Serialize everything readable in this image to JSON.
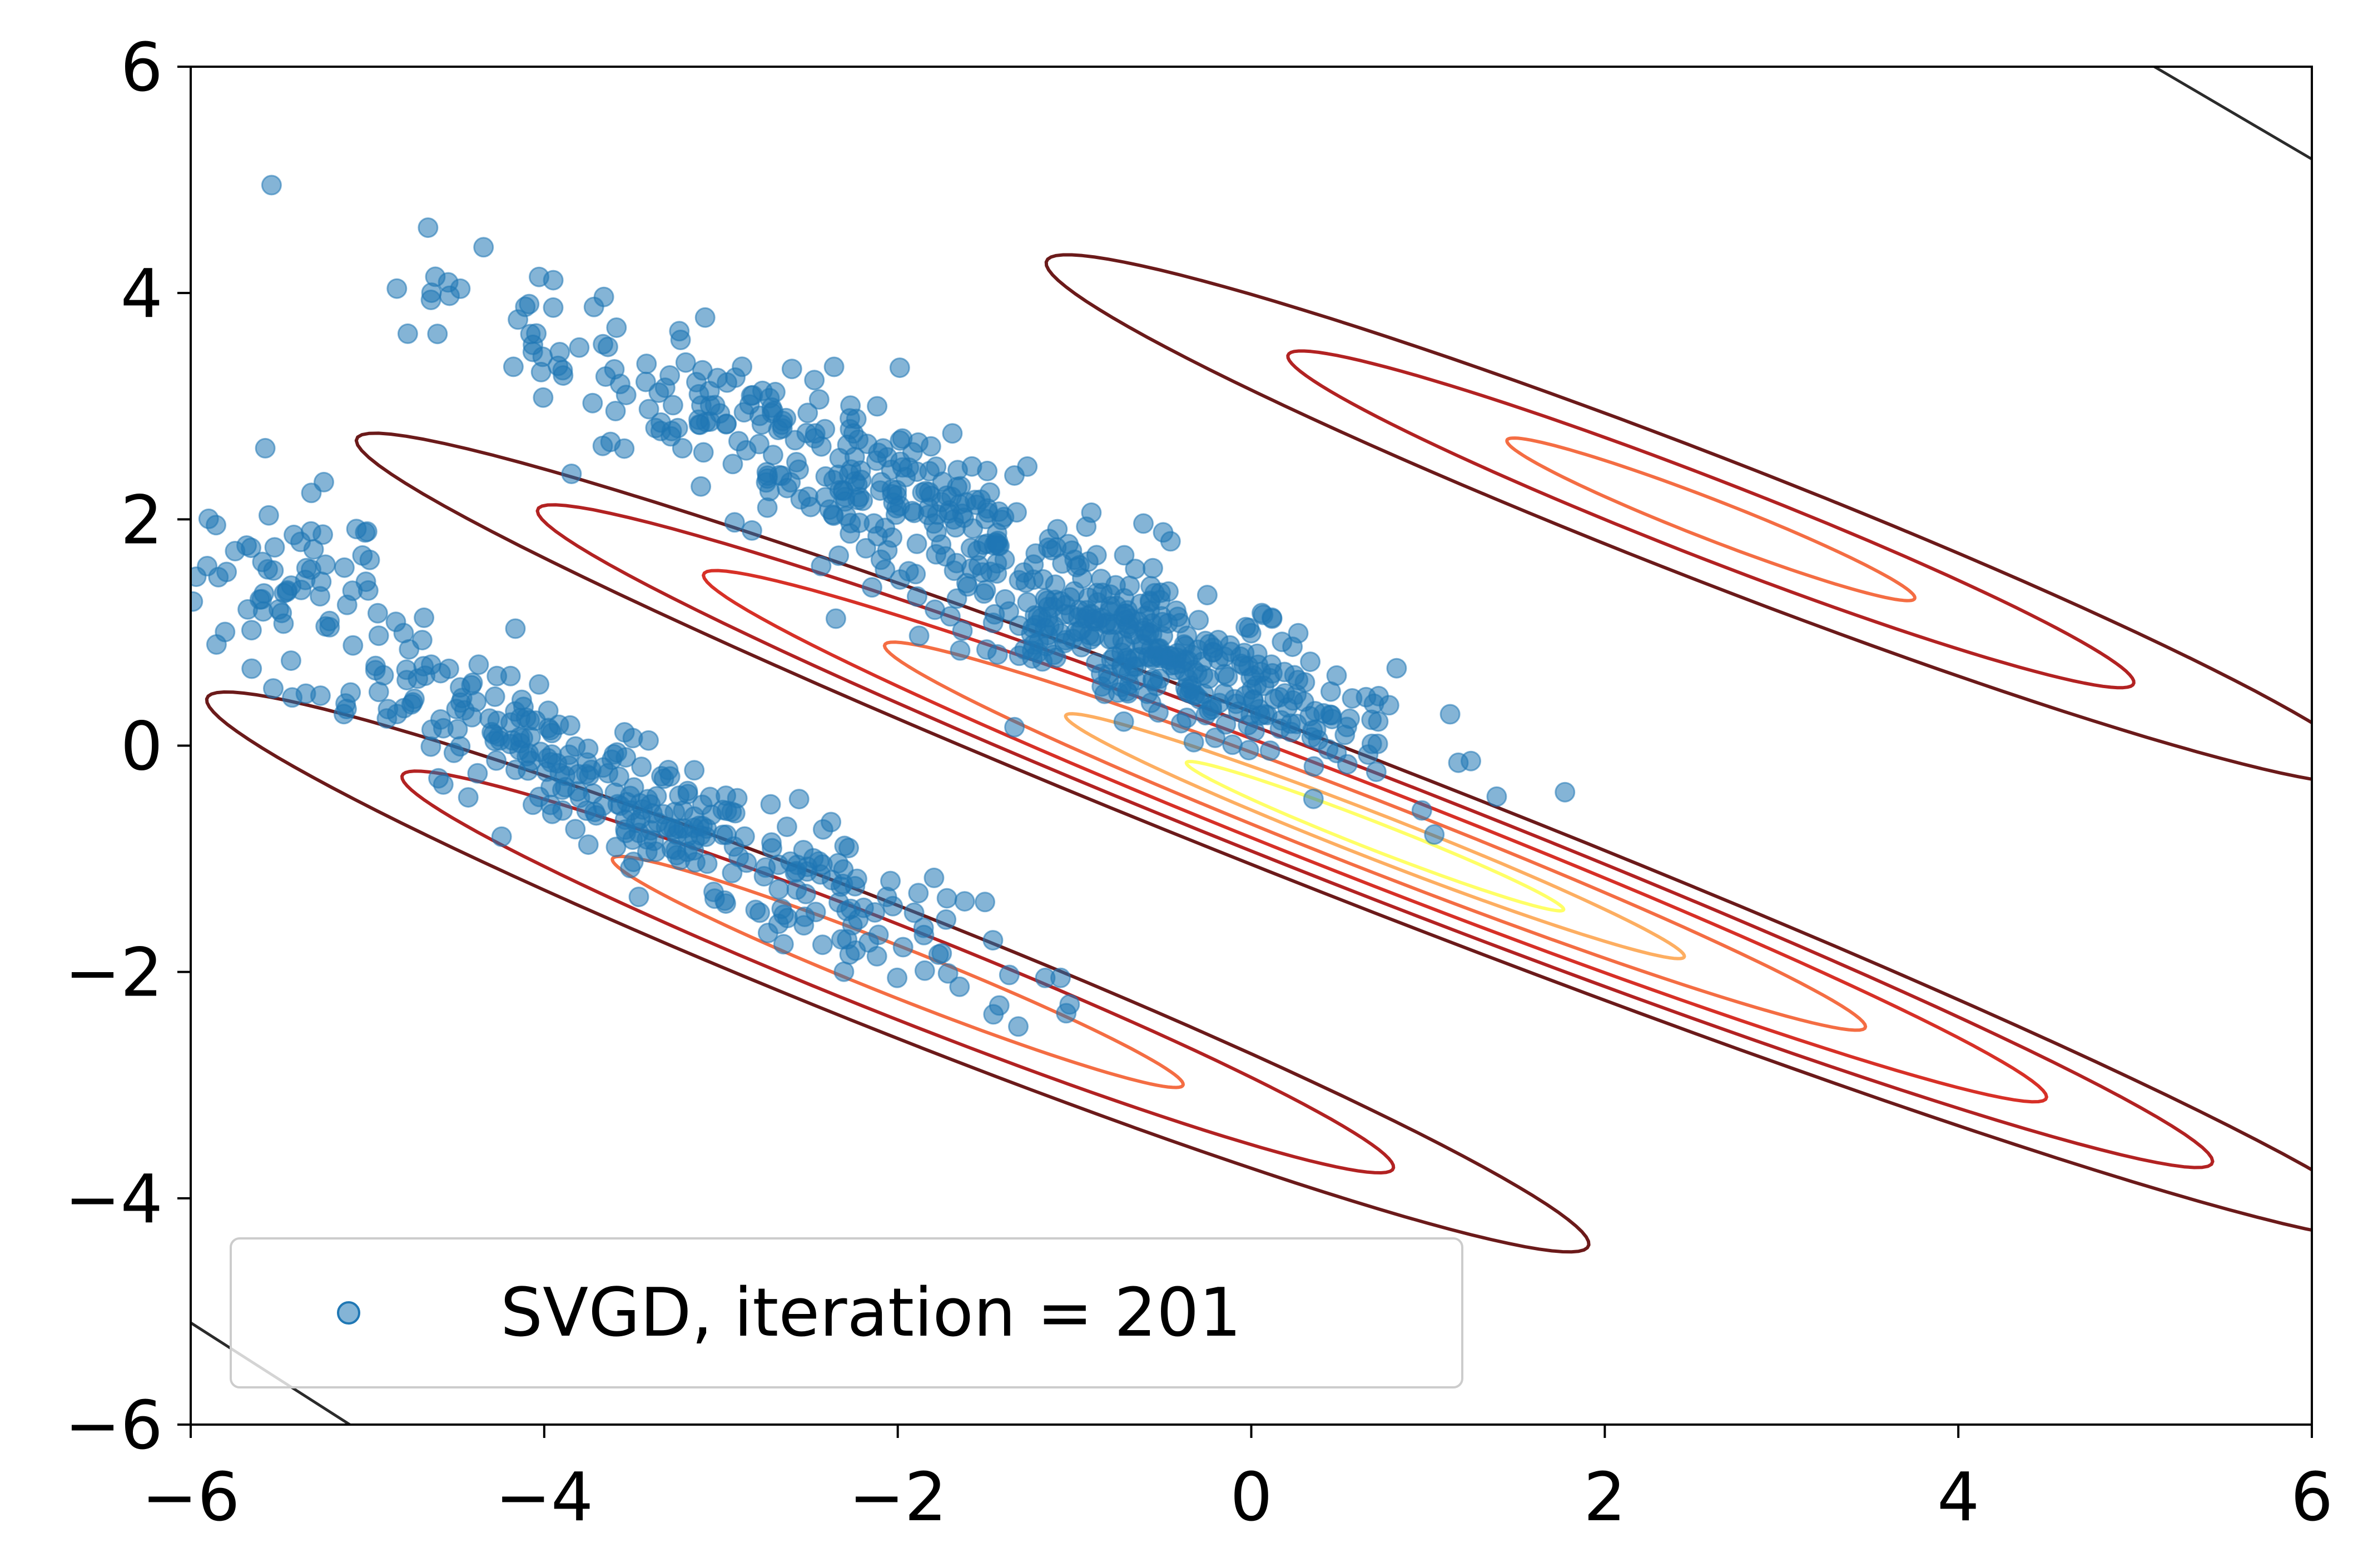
{
  "chart_data": {
    "type": "scatter",
    "title": "",
    "xlabel": "",
    "ylabel": "",
    "xlim": [
      -6,
      6
    ],
    "ylim": [
      -6,
      6
    ],
    "x_ticks": [
      -6,
      -4,
      -2,
      0,
      2,
      4,
      6
    ],
    "y_ticks": [
      -6,
      -4,
      -2,
      0,
      2,
      4,
      6
    ],
    "x_tick_labels": [
      "−6",
      "−4",
      "−2",
      "0",
      "2",
      "4",
      "6"
    ],
    "y_tick_labels": [
      "−6",
      "−4",
      "−2",
      "0",
      "2",
      "4",
      "6"
    ],
    "grid": false,
    "legend": {
      "position": "lower-left",
      "entries": [
        "SVGD, iteration = 201"
      ]
    },
    "series": [
      {
        "name": "SVGD, iteration = 201",
        "kind": "scatter",
        "color": "#1f77b4",
        "alpha": 0.55,
        "clusters": [
          {
            "center": [
              -2.0,
              2.2
            ],
            "count": 380,
            "spread": [
              1.55,
              0.28
            ],
            "angle_deg": -37
          },
          {
            "center": [
              -0.5,
              0.7
            ],
            "count": 260,
            "spread": [
              0.8,
              0.22
            ],
            "angle_deg": -30
          },
          {
            "center": [
              -3.6,
              -0.4
            ],
            "count": 330,
            "spread": [
              1.35,
              0.25
            ],
            "angle_deg": -38
          },
          {
            "center": [
              -5.4,
              1.6
            ],
            "count": 50,
            "spread": [
              0.5,
              0.3
            ],
            "angle_deg": -40
          }
        ]
      }
    ],
    "contours": [
      {
        "center": [
          0.7,
          -0.8
        ],
        "angle_deg": -31.5,
        "ellipses": [
          {
            "a": 6.75,
            "b": 0.58,
            "color": "#6b1a1a"
          },
          {
            "a": 5.55,
            "b": 0.48,
            "color": "#b22222"
          },
          {
            "a": 4.45,
            "b": 0.38,
            "color": "#d73027"
          },
          {
            "a": 3.25,
            "b": 0.28,
            "color": "#f46d43"
          },
          {
            "a": 2.05,
            "b": 0.18,
            "color": "#fdae61"
          },
          {
            "a": 1.25,
            "b": 0.11,
            "color": "#ffff66"
          }
        ]
      },
      {
        "center": [
          -2.0,
          -2.0
        ],
        "angle_deg": -32,
        "ellipses": [
          {
            "a": 4.6,
            "b": 0.5,
            "color": "#6b1a1a"
          },
          {
            "a": 3.3,
            "b": 0.36,
            "color": "#b22222"
          },
          {
            "a": 1.9,
            "b": 0.2,
            "color": "#f46d43"
          }
        ]
      },
      {
        "center": [
          2.6,
          2.0
        ],
        "angle_deg": -31.5,
        "ellipses": [
          {
            "a": 4.4,
            "b": 0.5,
            "color": "#6b1a1a"
          },
          {
            "a": 2.8,
            "b": 0.32,
            "color": "#b22222"
          },
          {
            "a": 1.35,
            "b": 0.16,
            "color": "#f46d43"
          }
        ]
      }
    ],
    "corner_lines": [
      {
        "x": [
          5.0,
          6.2
        ],
        "y": [
          6.1,
          5.0
        ],
        "color": "#2b2b2b"
      },
      {
        "x": [
          -6.0,
          -5.1
        ],
        "y": [
          -5.1,
          -6.0
        ],
        "color": "#2b2b2b"
      }
    ]
  }
}
